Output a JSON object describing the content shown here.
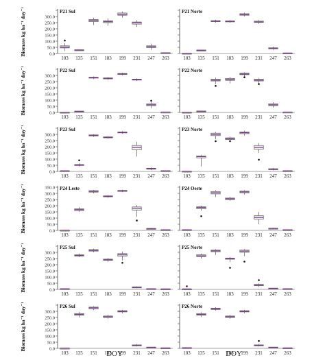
{
  "figure": {
    "ylabel": "Biomass kg ha⁻¹ day⁻¹",
    "xlabel": "DOY",
    "categories": [
      "103",
      "135",
      "151",
      "183",
      "199",
      "231",
      "247",
      "263"
    ],
    "y_ticks": [
      "0.0",
      "50.0",
      "100.0",
      "150.0",
      "200.0",
      "250.0",
      "300.0",
      "350.0"
    ],
    "colors": {
      "box_fill": "#f2f2f2",
      "box_edge": "#555555",
      "median": "#7a3c8c",
      "axis": "#444444"
    }
  },
  "chart_data": [
    {
      "type": "box",
      "title": "P21 Sul",
      "ylim": [
        0,
        350
      ],
      "y_ticks": [
        "0.0",
        "50.0",
        "100.0",
        "150.0",
        "200.0",
        "250.0",
        "300.0"
      ],
      "x": [
        "103",
        "135",
        "151",
        "183",
        "199",
        "231",
        "247",
        "263"
      ],
      "boxes": [
        [
          20,
          45,
          52,
          62,
          85
        ],
        [
          25,
          27,
          28,
          30,
          32
        ],
        [
          230,
          258,
          268,
          275,
          290
        ],
        [
          225,
          250,
          258,
          266,
          285
        ],
        [
          290,
          310,
          318,
          328,
          340
        ],
        [
          215,
          238,
          248,
          255,
          270
        ],
        [
          30,
          48,
          55,
          62,
          80
        ],
        [
          2,
          4,
          5,
          6,
          8
        ]
      ],
      "outliers": [
        [
          105
        ],
        [],
        [],
        [],
        [],
        [],
        [],
        []
      ]
    },
    {
      "type": "box",
      "title": "P21 Norte",
      "ylim": [
        0,
        350
      ],
      "y_ticks": [],
      "x": [
        "103",
        "135",
        "151",
        "183",
        "199",
        "231",
        "247",
        "263"
      ],
      "boxes": [
        [
          0,
          1,
          2,
          2,
          3
        ],
        [
          22,
          25,
          26,
          28,
          30
        ],
        [
          250,
          258,
          262,
          266,
          272
        ],
        [
          250,
          256,
          260,
          264,
          270
        ],
        [
          300,
          310,
          316,
          322,
          330
        ],
        [
          240,
          252,
          256,
          262,
          270
        ],
        [
          30,
          38,
          42,
          46,
          55
        ],
        [
          1,
          2,
          3,
          4,
          5
        ]
      ],
      "outliers": [
        [],
        [],
        [],
        [],
        [],
        [],
        [],
        []
      ]
    },
    {
      "type": "box",
      "title": "P22 Sul",
      "ylim": [
        0,
        350
      ],
      "y_ticks": [
        "0.0",
        "50.0",
        "100.0",
        "150.0",
        "200.0",
        "250.0",
        "300.0"
      ],
      "x": [
        "103",
        "135",
        "151",
        "183",
        "199",
        "231",
        "247",
        "263"
      ],
      "boxes": [
        [
          0,
          1,
          2,
          2,
          3
        ],
        [
          5,
          8,
          9,
          10,
          12
        ],
        [
          270,
          278,
          282,
          286,
          292
        ],
        [
          265,
          272,
          276,
          280,
          286
        ],
        [
          300,
          308,
          312,
          316,
          322
        ],
        [
          255,
          262,
          266,
          270,
          276
        ],
        [
          35,
          55,
          62,
          70,
          85
        ],
        [
          1,
          2,
          3,
          3,
          4
        ]
      ],
      "outliers": [
        [],
        [],
        [],
        [],
        [],
        [],
        [
          95
        ],
        []
      ]
    },
    {
      "type": "box",
      "title": "P22 Norte",
      "ylim": [
        0,
        350
      ],
      "y_ticks": [],
      "x": [
        "103",
        "135",
        "151",
        "183",
        "199",
        "231",
        "247",
        "263"
      ],
      "boxes": [
        [
          0,
          1,
          2,
          2,
          3
        ],
        [
          5,
          8,
          10,
          12,
          14
        ],
        [
          230,
          255,
          262,
          270,
          282
        ],
        [
          235,
          260,
          268,
          276,
          288
        ],
        [
          290,
          306,
          312,
          318,
          326
        ],
        [
          230,
          255,
          262,
          270,
          280
        ],
        [
          40,
          55,
          62,
          70,
          82
        ],
        [
          1,
          2,
          3,
          3,
          4
        ]
      ],
      "outliers": [
        [],
        [],
        [
          215
        ],
        [],
        [
          285
        ],
        [
          230
        ],
        [],
        []
      ]
    },
    {
      "type": "box",
      "title": "P23 Sul",
      "ylim": [
        0,
        350
      ],
      "y_ticks": [
        "0.0",
        "50.0",
        "100.0",
        "150.0",
        "200.0",
        "250.0",
        "300.0"
      ],
      "x": [
        "103",
        "135",
        "151",
        "183",
        "199",
        "231",
        "247",
        "263"
      ],
      "boxes": [
        [
          2,
          4,
          5,
          6,
          8
        ],
        [
          40,
          48,
          52,
          56,
          65
        ],
        [
          280,
          288,
          292,
          296,
          302
        ],
        [
          265,
          272,
          276,
          280,
          286
        ],
        [
          305,
          312,
          316,
          320,
          326
        ],
        [
          120,
          175,
          195,
          210,
          240
        ],
        [
          10,
          18,
          22,
          26,
          32
        ],
        [
          2,
          4,
          5,
          6,
          8
        ]
      ],
      "outliers": [
        [],
        [
          90
        ],
        [],
        [],
        [],
        [],
        [],
        []
      ]
    },
    {
      "type": "box",
      "title": "P23 Norte",
      "ylim": [
        0,
        350
      ],
      "y_ticks": [],
      "x": [
        "103",
        "135",
        "151",
        "183",
        "199",
        "231",
        "247",
        "263"
      ],
      "boxes": [
        [
          0,
          1,
          2,
          2,
          3
        ],
        [
          40,
          110,
          120,
          125,
          135
        ],
        [
          260,
          290,
          300,
          310,
          320
        ],
        [
          240,
          258,
          266,
          272,
          282
        ],
        [
          290,
          306,
          314,
          320,
          330
        ],
        [
          150,
          180,
          195,
          210,
          230
        ],
        [
          8,
          14,
          18,
          22,
          28
        ],
        [
          2,
          4,
          5,
          6,
          8
        ]
      ],
      "outliers": [
        [],
        [],
        [
          245
        ],
        [
          245
        ],
        [],
        [
          95
        ],
        [],
        []
      ]
    },
    {
      "type": "box",
      "title": "P24 Leste",
      "ylim": [
        0,
        350
      ],
      "y_ticks": [
        "0.0",
        "50.0",
        "100.0",
        "150.0",
        "200.0",
        "250.0",
        "300.0",
        "350.0"
      ],
      "x": [
        "103",
        "135",
        "151",
        "183",
        "199",
        "231",
        "247",
        "263"
      ],
      "boxes": [
        [
          0,
          1,
          2,
          2,
          3
        ],
        [
          150,
          160,
          168,
          175,
          188
        ],
        [
          300,
          310,
          316,
          322,
          328
        ],
        [
          265,
          272,
          276,
          280,
          286
        ],
        [
          310,
          316,
          320,
          324,
          330
        ],
        [
          110,
          165,
          180,
          190,
          205
        ],
        [
          8,
          12,
          14,
          16,
          20
        ],
        [
          2,
          4,
          5,
          6,
          8
        ]
      ],
      "outliers": [
        [],
        [],
        [],
        [],
        [],
        [
          80
        ],
        [],
        []
      ]
    },
    {
      "type": "box",
      "title": "P24 Oeste",
      "ylim": [
        0,
        350
      ],
      "y_ticks": [],
      "x": [
        "103",
        "135",
        "151",
        "183",
        "199",
        "231",
        "247",
        "263"
      ],
      "boxes": [
        [
          2,
          4,
          5,
          6,
          8
        ],
        [
          160,
          175,
          185,
          192,
          200
        ],
        [
          270,
          295,
          305,
          315,
          325
        ],
        [
          240,
          250,
          256,
          262,
          270
        ],
        [
          290,
          305,
          312,
          318,
          326
        ],
        [
          50,
          90,
          105,
          120,
          150
        ],
        [
          10,
          14,
          16,
          18,
          22
        ],
        [
          2,
          4,
          5,
          6,
          8
        ]
      ],
      "outliers": [
        [],
        [
          115
        ],
        [],
        [],
        [],
        [],
        [],
        []
      ]
    },
    {
      "type": "box",
      "title": "P25 Sul",
      "ylim": [
        0,
        350
      ],
      "y_ticks": [
        "0.0",
        "50.0",
        "100.0",
        "150.0",
        "200.0",
        "250.0",
        "300.0"
      ],
      "x": [
        "103",
        "135",
        "151",
        "183",
        "199",
        "231",
        "247",
        "263"
      ],
      "boxes": [
        [
          2,
          4,
          5,
          6,
          8
        ],
        [
          262,
          270,
          275,
          280,
          290
        ],
        [
          300,
          310,
          316,
          322,
          330
        ],
        [
          225,
          235,
          240,
          245,
          255
        ],
        [
          235,
          270,
          280,
          290,
          305
        ],
        [
          10,
          16,
          18,
          20,
          24
        ],
        [
          2,
          4,
          5,
          6,
          8
        ],
        [
          1,
          2,
          3,
          4,
          5
        ]
      ],
      "outliers": [
        [],
        [],
        [],
        [],
        [
          215
        ],
        [],
        [],
        []
      ]
    },
    {
      "type": "box",
      "title": "P25 Norte",
      "ylim": [
        0,
        350
      ],
      "y_ticks": [],
      "x": [
        "103",
        "135",
        "151",
        "183",
        "199",
        "231",
        "247",
        "263"
      ],
      "boxes": [
        [
          0,
          2,
          3,
          4,
          6
        ],
        [
          250,
          265,
          272,
          280,
          290
        ],
        [
          280,
          305,
          312,
          318,
          326
        ],
        [
          220,
          244,
          250,
          254,
          262
        ],
        [
          270,
          300,
          310,
          318,
          326
        ],
        [
          20,
          30,
          35,
          40,
          48
        ],
        [
          4,
          6,
          8,
          10,
          12
        ],
        [
          2,
          4,
          5,
          6,
          8
        ]
      ],
      "outliers": [
        [
          25
        ],
        [],
        [],
        [
          175
        ],
        [
          225
        ],
        [
          75
        ],
        [],
        []
      ]
    },
    {
      "type": "box",
      "title": "P26 Sul",
      "ylim": [
        0,
        350
      ],
      "y_ticks": [
        "0.0",
        "50.0",
        "100.0",
        "150.0",
        "200.0",
        "250.0",
        "300.0"
      ],
      "x": [
        "103",
        "135",
        "151",
        "183",
        "199",
        "231",
        "247",
        "263"
      ],
      "boxes": [
        [
          0,
          1,
          2,
          2,
          3
        ],
        [
          250,
          268,
          275,
          282,
          295
        ],
        [
          310,
          320,
          328,
          334,
          342
        ],
        [
          240,
          250,
          256,
          262,
          270
        ],
        [
          285,
          295,
          300,
          305,
          312
        ],
        [
          15,
          22,
          25,
          28,
          35
        ],
        [
          4,
          6,
          8,
          10,
          12
        ],
        [
          1,
          2,
          3,
          4,
          5
        ]
      ],
      "outliers": [
        [],
        [],
        [],
        [],
        [],
        [],
        [],
        []
      ]
    },
    {
      "type": "box",
      "title": "P26 Norte",
      "ylim": [
        0,
        350
      ],
      "y_ticks": [],
      "x": [
        "103",
        "135",
        "151",
        "183",
        "199",
        "231",
        "247",
        "263"
      ],
      "boxes": [
        [
          2,
          4,
          5,
          6,
          8
        ],
        [
          255,
          268,
          275,
          282,
          292
        ],
        [
          305,
          315,
          320,
          326,
          334
        ],
        [
          240,
          250,
          256,
          262,
          270
        ],
        [
          285,
          295,
          300,
          305,
          312
        ],
        [
          15,
          22,
          25,
          28,
          35
        ],
        [
          4,
          6,
          8,
          10,
          12
        ],
        [
          1,
          2,
          3,
          4,
          5
        ]
      ],
      "outliers": [
        [],
        [],
        [],
        [],
        [],
        [
          60
        ],
        [],
        []
      ]
    }
  ]
}
